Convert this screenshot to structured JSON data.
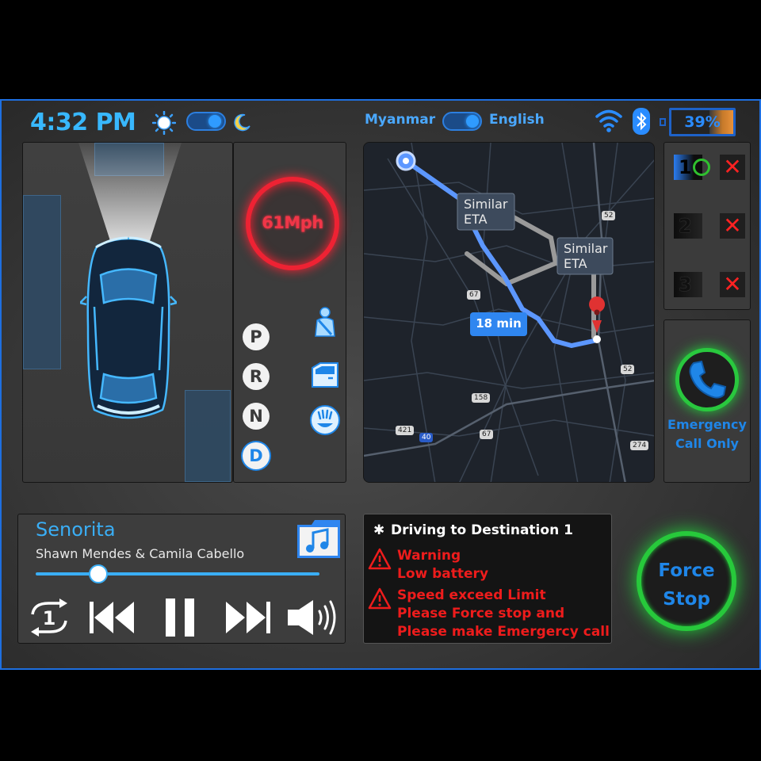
{
  "header": {
    "time": "4:32 PM",
    "language_left": "Myanmar",
    "language_right": "English",
    "battery_percent": "39%",
    "battery_level": 0.39
  },
  "drive": {
    "speed": "61Mph",
    "gears": [
      "P",
      "R",
      "N",
      "D"
    ],
    "active_gear": "D"
  },
  "map": {
    "route_labels": [
      "Similar ETA",
      "Similar ETA"
    ],
    "eta": "18 min",
    "road_shields": [
      "52",
      "67",
      "52",
      "158",
      "421",
      "40",
      "67",
      "274"
    ]
  },
  "destinations": [
    {
      "number": "1",
      "status": "active"
    },
    {
      "number": "2",
      "status": "pending"
    },
    {
      "number": "3",
      "status": "pending"
    }
  ],
  "emergency": {
    "line1": "Emergency",
    "line2": "Call Only"
  },
  "media": {
    "title": "Senorita",
    "artist": "Shawn Mendes & Camila Cabello",
    "progress": 0.22
  },
  "alerts": {
    "heading": "Driving to Destination 1",
    "items": [
      {
        "line1": "Warning",
        "line2": "Low battery"
      },
      {
        "line1": "Speed exceed Limit",
        "line2": "Please Force stop and",
        "line3": "Please make Emergercy call"
      }
    ]
  },
  "force_stop": {
    "line1": "Force",
    "line2": "Stop"
  },
  "colors": {
    "accent": "#1f86e8",
    "danger": "#ee1c1c",
    "ok": "#27c93b",
    "speed": "#ee2233"
  }
}
